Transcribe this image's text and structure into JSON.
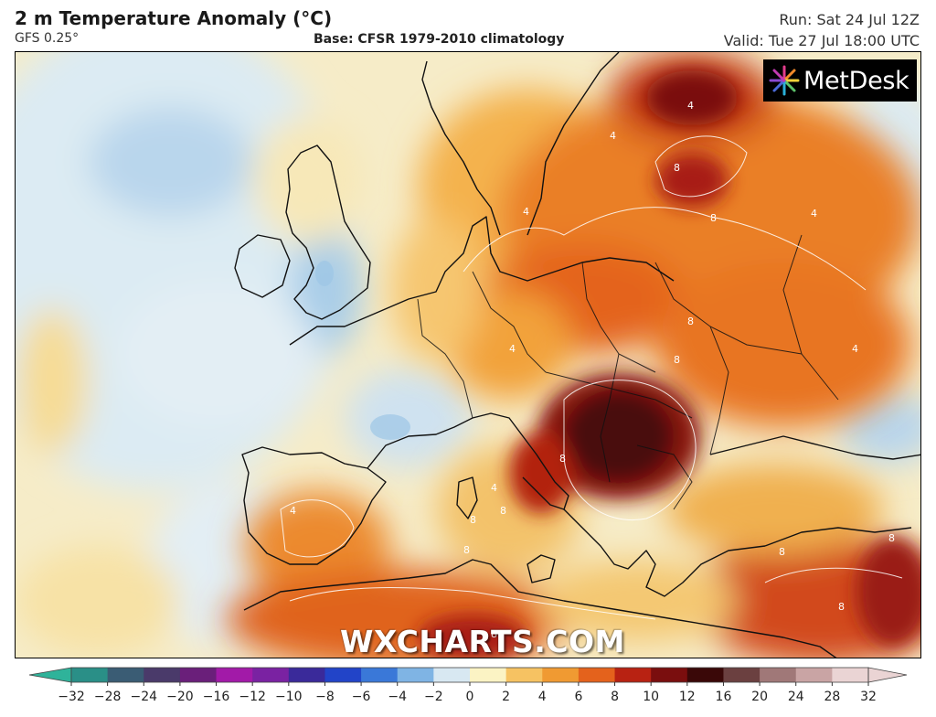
{
  "header": {
    "title": "2 m Temperature Anomaly (°C)",
    "model": "GFS 0.25°",
    "base": "Base: CFSR 1979-2010 climatology",
    "run": "Run: Sat 24 Jul 12Z",
    "valid": "Valid: Tue 27 Jul 18:00 UTC"
  },
  "branding": {
    "metdesk_label": "MetDesk",
    "watermark": "WXCHARTS.COM"
  },
  "map": {
    "variable": "2 m Temperature Anomaly",
    "units": "°C",
    "region": "Europe and North Africa",
    "contour_labels": [
      "4",
      "8"
    ]
  },
  "colorbar": {
    "ticks": [
      "−32",
      "−28",
      "−24",
      "−20",
      "−16",
      "−12",
      "−10",
      "−8",
      "−6",
      "−4",
      "−2",
      "0",
      "2",
      "4",
      "6",
      "8",
      "10",
      "12",
      "16",
      "20",
      "24",
      "28",
      "32"
    ],
    "colors": [
      "#2fb39a",
      "#2a8f87",
      "#3a5c74",
      "#4a3a6a",
      "#6a1f7a",
      "#a21aa8",
      "#7a22a2",
      "#3a2a9a",
      "#2244c8",
      "#3a78d8",
      "#7fb4e4",
      "#d8e8f2",
      "#fbf3c4",
      "#f6c262",
      "#f09a32",
      "#e4621c",
      "#b82212",
      "#7a0e0e",
      "#3a0808",
      "#6b4040",
      "#a07878",
      "#c9a4a4",
      "#ead4d4"
    ]
  }
}
